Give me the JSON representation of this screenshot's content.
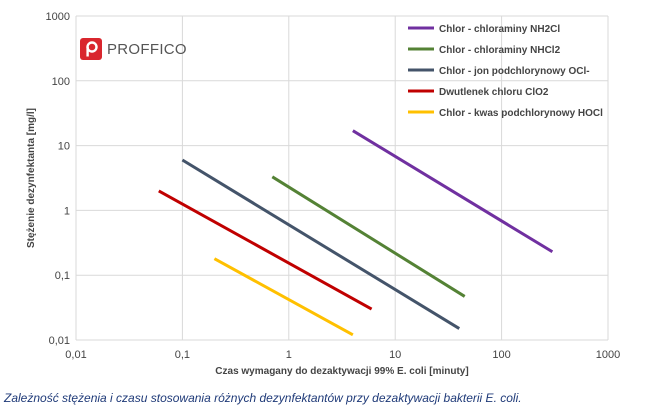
{
  "logo": {
    "text": "PROFFICO",
    "icon": "proffico-logo-icon",
    "color": "#d9262e"
  },
  "caption": "Zależność stężenia i czasu stosowania różnych dezynfektantów przy dezaktywacji bakterii E. coli.",
  "chart_data": {
    "type": "line",
    "title": "",
    "xlabel": "Czas wymagany do dezaktywacji 99% E. coli [minuty]",
    "ylabel": "Stężenie dezynfektanta [mg/l]",
    "xscale": "log",
    "yscale": "log",
    "xlim": [
      0.01,
      1000
    ],
    "ylim": [
      0.01,
      1000
    ],
    "x_ticks": [
      "0,01",
      "0,1",
      "1",
      "10",
      "100",
      "1000"
    ],
    "y_ticks": [
      "0,01",
      "0,1",
      "1",
      "10",
      "100",
      "1000"
    ],
    "grid": true,
    "legend_position": "top-right",
    "series": [
      {
        "name": "Chlor - chloraminy NH2Cl",
        "color": "#7030a0",
        "x": [
          4,
          300
        ],
        "y": [
          17,
          0.23
        ]
      },
      {
        "name": "Chlor - chloraminy NHCl2",
        "color": "#548235",
        "x": [
          0.7,
          45
        ],
        "y": [
          3.3,
          0.047
        ]
      },
      {
        "name": "Chlor - jon podchlorynowy OCl-",
        "color": "#44546a",
        "x": [
          0.1,
          40
        ],
        "y": [
          6,
          0.015
        ]
      },
      {
        "name": "Dwutlenek chloru ClO2",
        "color": "#c00000",
        "x": [
          0.06,
          6
        ],
        "y": [
          2,
          0.03
        ]
      },
      {
        "name": "Chlor - kwas podchlorynowy HOCl",
        "color": "#ffc000",
        "x": [
          0.2,
          4
        ],
        "y": [
          0.18,
          0.012
        ]
      }
    ]
  }
}
